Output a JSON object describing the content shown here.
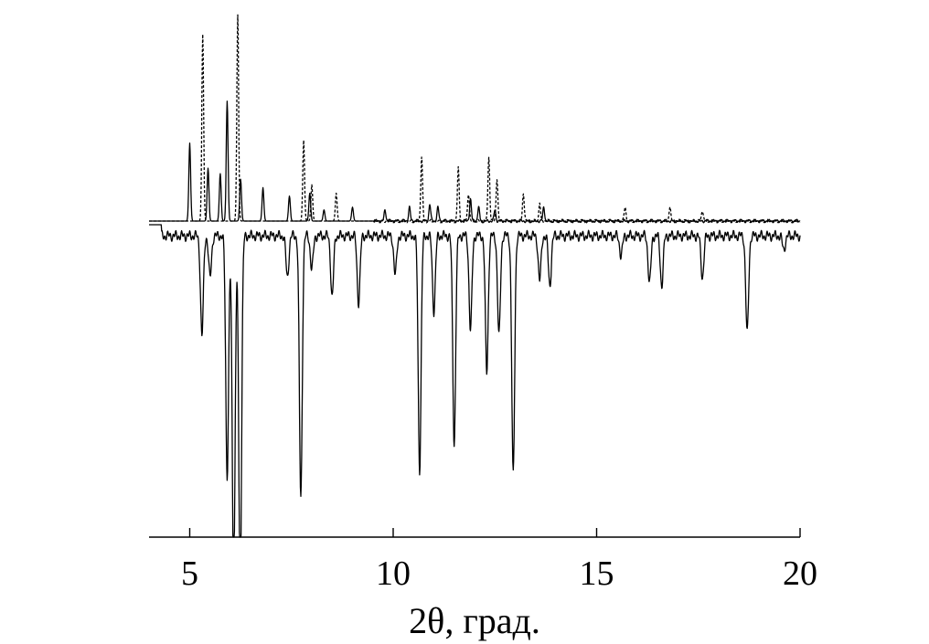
{
  "chart_data": {
    "type": "line",
    "title": "",
    "xlabel": "2θ, град.",
    "ylabel": "",
    "xlim": [
      4,
      20
    ],
    "ylim": [
      -1.25,
      0.85
    ],
    "grid": false,
    "legend": "none",
    "x_ticks": [
      5,
      10,
      15,
      20
    ],
    "x_tick_labels": [
      "5",
      "10",
      "15",
      "20"
    ],
    "series": [
      {
        "style": "solid",
        "color": "#000000",
        "peaks": [
          {
            "x": 5.0,
            "h": 0.28
          },
          {
            "x": 5.45,
            "h": 0.19
          },
          {
            "x": 5.75,
            "h": 0.17
          },
          {
            "x": 5.92,
            "h": 0.43
          },
          {
            "x": 6.25,
            "h": 0.15
          },
          {
            "x": 6.8,
            "h": 0.12
          },
          {
            "x": 7.45,
            "h": 0.09
          },
          {
            "x": 7.95,
            "h": 0.1
          },
          {
            "x": 8.3,
            "h": 0.04
          },
          {
            "x": 9.0,
            "h": 0.05
          },
          {
            "x": 9.8,
            "h": 0.04
          },
          {
            "x": 10.4,
            "h": 0.05
          },
          {
            "x": 10.9,
            "h": 0.06
          },
          {
            "x": 11.1,
            "h": 0.05
          },
          {
            "x": 11.9,
            "h": 0.08
          },
          {
            "x": 12.1,
            "h": 0.05
          },
          {
            "x": 12.5,
            "h": 0.04
          },
          {
            "x": 13.7,
            "h": 0.05
          }
        ]
      },
      {
        "style": "dashed",
        "color": "#000000",
        "peaks": [
          {
            "x": 5.32,
            "h": 0.67
          },
          {
            "x": 6.18,
            "h": 0.74
          },
          {
            "x": 7.8,
            "h": 0.29
          },
          {
            "x": 8.0,
            "h": 0.13
          },
          {
            "x": 8.6,
            "h": 0.1
          },
          {
            "x": 10.7,
            "h": 0.23
          },
          {
            "x": 11.6,
            "h": 0.19
          },
          {
            "x": 11.85,
            "h": 0.1
          },
          {
            "x": 12.35,
            "h": 0.23
          },
          {
            "x": 12.55,
            "h": 0.15
          },
          {
            "x": 13.2,
            "h": 0.1
          },
          {
            "x": 13.6,
            "h": 0.06
          },
          {
            "x": 15.7,
            "h": 0.05
          },
          {
            "x": 16.8,
            "h": 0.05
          },
          {
            "x": 17.6,
            "h": 0.04
          }
        ]
      },
      {
        "style": "solid-inverted",
        "color": "#000000",
        "peaks": [
          {
            "x": 5.3,
            "h": 0.36
          },
          {
            "x": 5.5,
            "h": 0.15
          },
          {
            "x": 5.92,
            "h": 0.86
          },
          {
            "x": 6.08,
            "h": 1.25
          },
          {
            "x": 6.24,
            "h": 1.25
          },
          {
            "x": 7.4,
            "h": 0.15
          },
          {
            "x": 7.73,
            "h": 0.94
          },
          {
            "x": 8.0,
            "h": 0.12
          },
          {
            "x": 8.5,
            "h": 0.22
          },
          {
            "x": 9.15,
            "h": 0.24
          },
          {
            "x": 10.05,
            "h": 0.14
          },
          {
            "x": 10.65,
            "h": 0.84
          },
          {
            "x": 11.0,
            "h": 0.27
          },
          {
            "x": 11.5,
            "h": 0.75
          },
          {
            "x": 11.9,
            "h": 0.34
          },
          {
            "x": 12.3,
            "h": 0.49
          },
          {
            "x": 12.6,
            "h": 0.36
          },
          {
            "x": 12.95,
            "h": 0.86
          },
          {
            "x": 13.6,
            "h": 0.16
          },
          {
            "x": 13.85,
            "h": 0.18
          },
          {
            "x": 15.6,
            "h": 0.07
          },
          {
            "x": 16.3,
            "h": 0.17
          },
          {
            "x": 16.6,
            "h": 0.18
          },
          {
            "x": 17.6,
            "h": 0.15
          },
          {
            "x": 18.7,
            "h": 0.35
          },
          {
            "x": 19.6,
            "h": 0.05
          }
        ]
      }
    ]
  }
}
